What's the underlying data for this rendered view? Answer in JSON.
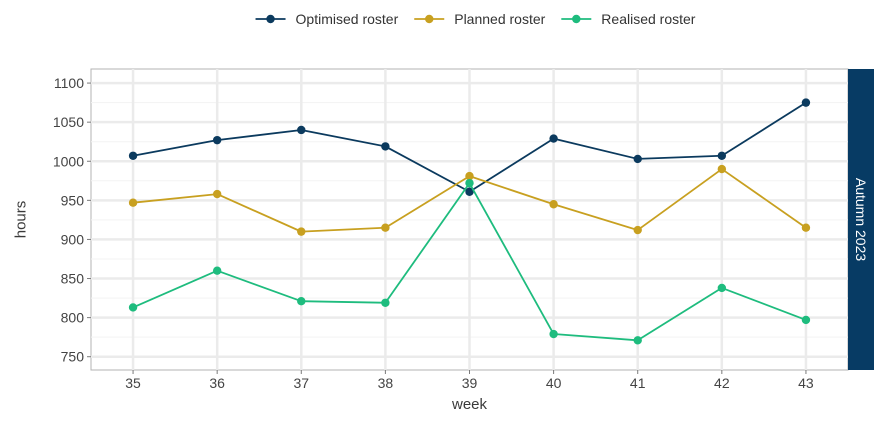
{
  "chart_data": {
    "type": "line",
    "xlabel": "week",
    "ylabel": "hours",
    "facet_label": "Autumn 2023",
    "legend_position": "top",
    "grid": true,
    "x": [
      35,
      36,
      37,
      38,
      39,
      40,
      41,
      42,
      43
    ],
    "xlim": [
      34.5,
      43.5
    ],
    "ylim": [
      733,
      1118
    ],
    "yticks": [
      750,
      800,
      850,
      900,
      950,
      1000,
      1050,
      1100
    ],
    "series": [
      {
        "name": "Optimised roster",
        "color": "#0b3a5e",
        "values": [
          1007,
          1027,
          1040,
          1019,
          961,
          1029,
          1003,
          1007,
          1075
        ]
      },
      {
        "name": "Planned roster",
        "color": "#c8a020",
        "values": [
          947,
          958,
          910,
          915,
          981,
          945,
          912,
          990,
          915
        ]
      },
      {
        "name": "Realised roster",
        "color": "#1ebc7e",
        "values": [
          813,
          860,
          821,
          819,
          972,
          779,
          771,
          838,
          797
        ]
      }
    ]
  }
}
